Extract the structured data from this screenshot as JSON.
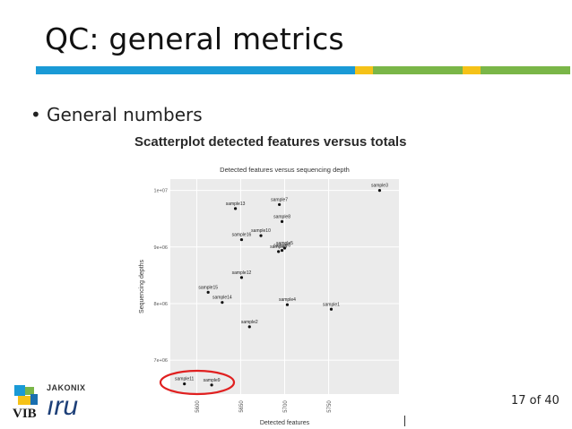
{
  "slide": {
    "title": "QC: general metrics",
    "bullet": "General numbers",
    "subtitle": "Scatterplot detected features versus totals",
    "page": "17 of 40",
    "logo_vib": "VIB",
    "logo_jakonix": "JAKONIX",
    "logo_iru": "ıru"
  },
  "colors": {
    "bar_blue": "#1a9ad6",
    "bar_green": "#7ab648",
    "bar_yellow": "#f5c218",
    "highlight": "#e02020"
  },
  "chart_data": {
    "type": "scatter",
    "title": "Detected features versus sequencing depth",
    "xlabel": "Detected features",
    "ylabel": "Sequencing depths",
    "xlim": [
      5570,
      5830
    ],
    "ylim": [
      6400000,
      10200000
    ],
    "x_ticks": [
      5600,
      5650,
      5700,
      5750
    ],
    "x_tick_labels": [
      "5600",
      "5650",
      "5700",
      "5750"
    ],
    "y_ticks": [
      7000000,
      8000000,
      9000000,
      10000000
    ],
    "y_tick_labels": [
      "7e+06",
      "8e+06",
      "9e+06",
      "1e+07"
    ],
    "grid": true,
    "points": [
      {
        "name": "sample3",
        "x": 5808,
        "y": 10000000
      },
      {
        "name": "sample7",
        "x": 5694,
        "y": 9750000
      },
      {
        "name": "sample13",
        "x": 5644,
        "y": 9680000
      },
      {
        "name": "sample8",
        "x": 5697,
        "y": 9450000
      },
      {
        "name": "sample10",
        "x": 5673,
        "y": 9200000
      },
      {
        "name": "sample16",
        "x": 5651,
        "y": 9130000
      },
      {
        "name": "sample5",
        "x": 5700,
        "y": 8980000
      },
      {
        "name": "sample6",
        "x": 5697,
        "y": 8940000
      },
      {
        "name": "sample9",
        "x": 5693,
        "y": 8920000
      },
      {
        "name": "sample12",
        "x": 5651,
        "y": 8460000
      },
      {
        "name": "sample15",
        "x": 5613,
        "y": 8200000
      },
      {
        "name": "sample14",
        "x": 5629,
        "y": 8020000
      },
      {
        "name": "sample4",
        "x": 5703,
        "y": 7980000
      },
      {
        "name": "sample1",
        "x": 5753,
        "y": 7900000
      },
      {
        "name": "sample2",
        "x": 5660,
        "y": 7590000
      },
      {
        "name": "sample11",
        "x": 5586,
        "y": 6580000
      },
      {
        "name": "sample9",
        "x": 5617,
        "y": 6560000
      }
    ],
    "highlighted": [
      "sample11",
      "sample9"
    ]
  }
}
